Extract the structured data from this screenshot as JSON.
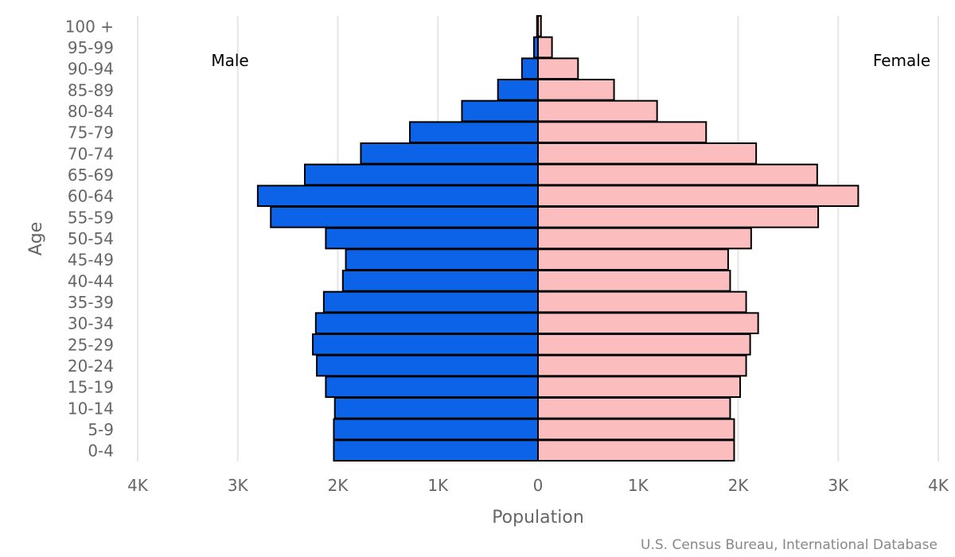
{
  "chart_data": {
    "type": "bar",
    "orientation": "horizontal",
    "categories": [
      "100 +",
      "95-99",
      "90-94",
      "85-89",
      "80-84",
      "75-79",
      "70-74",
      "65-69",
      "60-64",
      "55-59",
      "50-54",
      "45-49",
      "40-44",
      "35-39",
      "30-34",
      "25-29",
      "20-24",
      "15-19",
      "10-14",
      "5-9",
      "0-4"
    ],
    "series": [
      {
        "name": "Male",
        "color": "#0c63e7",
        "values": [
          0.01,
          0.04,
          0.16,
          0.4,
          0.76,
          1.28,
          1.77,
          2.33,
          2.8,
          2.67,
          2.12,
          1.92,
          1.95,
          2.14,
          2.22,
          2.25,
          2.21,
          2.12,
          2.03,
          2.04,
          2.04
        ]
      },
      {
        "name": "Female",
        "color": "#fbbdbd",
        "values": [
          0.03,
          0.14,
          0.4,
          0.76,
          1.19,
          1.68,
          2.18,
          2.79,
          3.2,
          2.8,
          2.13,
          1.9,
          1.92,
          2.08,
          2.2,
          2.12,
          2.08,
          2.02,
          1.92,
          1.96,
          1.96
        ]
      }
    ],
    "xlabel": "Population",
    "ylabel": "Age",
    "xlim": [
      -4,
      4
    ],
    "xticks": [
      "4K",
      "3K",
      "2K",
      "1K",
      "0",
      "1K",
      "2K",
      "3K",
      "4K"
    ],
    "grid": true,
    "credit": "U.S. Census Bureau, International Database"
  }
}
